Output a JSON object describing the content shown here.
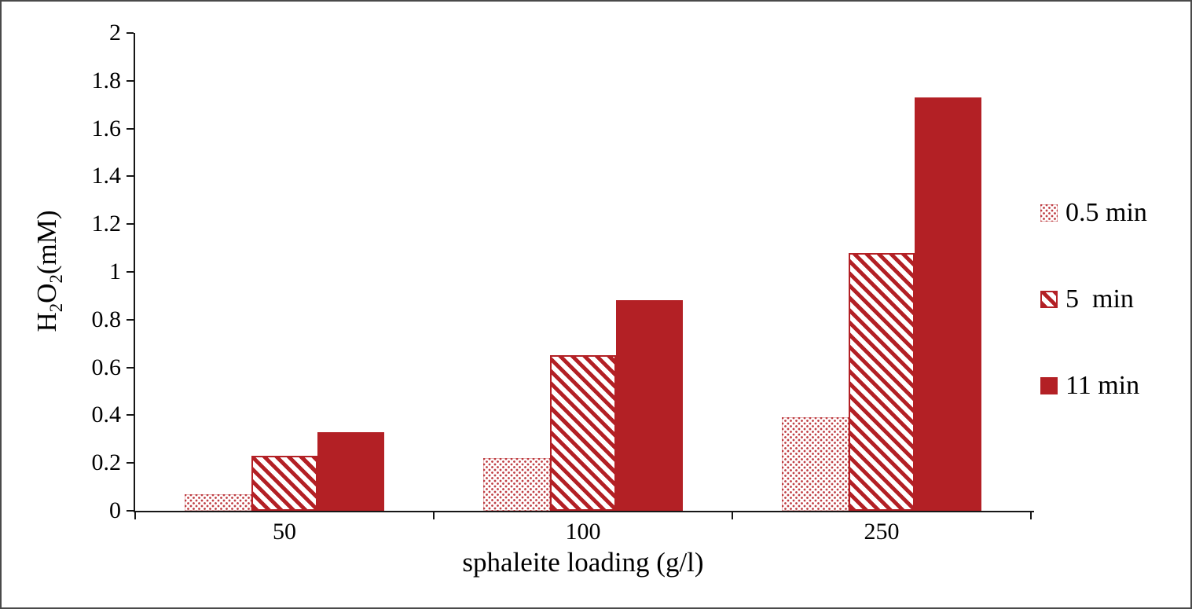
{
  "chart_data": {
    "type": "bar",
    "title": "",
    "xlabel": "sphaleite loading (g/l)",
    "ylabel": "H2O2(mM)",
    "ylabel_rich": [
      {
        "t": "H"
      },
      {
        "t": "2",
        "sub": true
      },
      {
        "t": "O"
      },
      {
        "t": "2",
        "sub": true
      },
      {
        "t": "(mM)"
      }
    ],
    "categories": [
      "50",
      "100",
      "250"
    ],
    "series": [
      {
        "name": "0.5 min",
        "pattern": "dots",
        "values": [
          0.07,
          0.22,
          0.39
        ]
      },
      {
        "name": "5  min",
        "pattern": "hatch",
        "values": [
          0.23,
          0.65,
          1.08
        ]
      },
      {
        "name": "11 min",
        "pattern": "solid",
        "values": [
          0.33,
          0.88,
          1.73
        ]
      }
    ],
    "ylim": [
      0,
      2
    ],
    "y_ticks": [
      {
        "label": "0",
        "value": 0
      },
      {
        "label": "0.2",
        "value": 0.2
      },
      {
        "label": "0.4",
        "value": 0.4
      },
      {
        "label": "0.6",
        "value": 0.6
      },
      {
        "label": "0.8",
        "value": 0.8
      },
      {
        "label": "1",
        "value": 1
      },
      {
        "label": "1.2",
        "value": 1.2
      },
      {
        "label": "1.4",
        "value": 1.4
      },
      {
        "label": "1.6",
        "value": 1.6
      },
      {
        "label": "1.8",
        "value": 1.8
      },
      {
        "label": "2",
        "value": 2
      }
    ],
    "grid": false,
    "legend_position": "right",
    "accent_color": "#b32025"
  }
}
